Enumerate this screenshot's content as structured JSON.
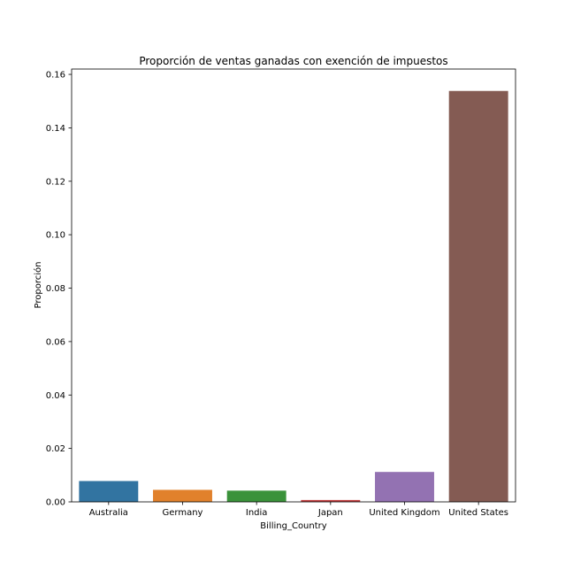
{
  "chart_data": {
    "type": "bar",
    "title": "Proporción de ventas ganadas con exención de impuestos",
    "xlabel": "Billing_Country",
    "ylabel": "Proporción",
    "categories": [
      "Australia",
      "Germany",
      "India",
      "Japan",
      "United Kingdom",
      "United States"
    ],
    "values": [
      0.0078,
      0.0045,
      0.0042,
      0.0007,
      0.0112,
      0.1538
    ],
    "ylim": [
      0,
      0.162
    ],
    "yticks": [
      "0.00",
      "0.02",
      "0.04",
      "0.06",
      "0.08",
      "0.10",
      "0.12",
      "0.14",
      "0.16"
    ],
    "grid": false,
    "legend": "none",
    "colors": [
      "#3274a1",
      "#e1812c",
      "#3a923a",
      "#c03d3e",
      "#9372b2",
      "#845b53"
    ]
  }
}
